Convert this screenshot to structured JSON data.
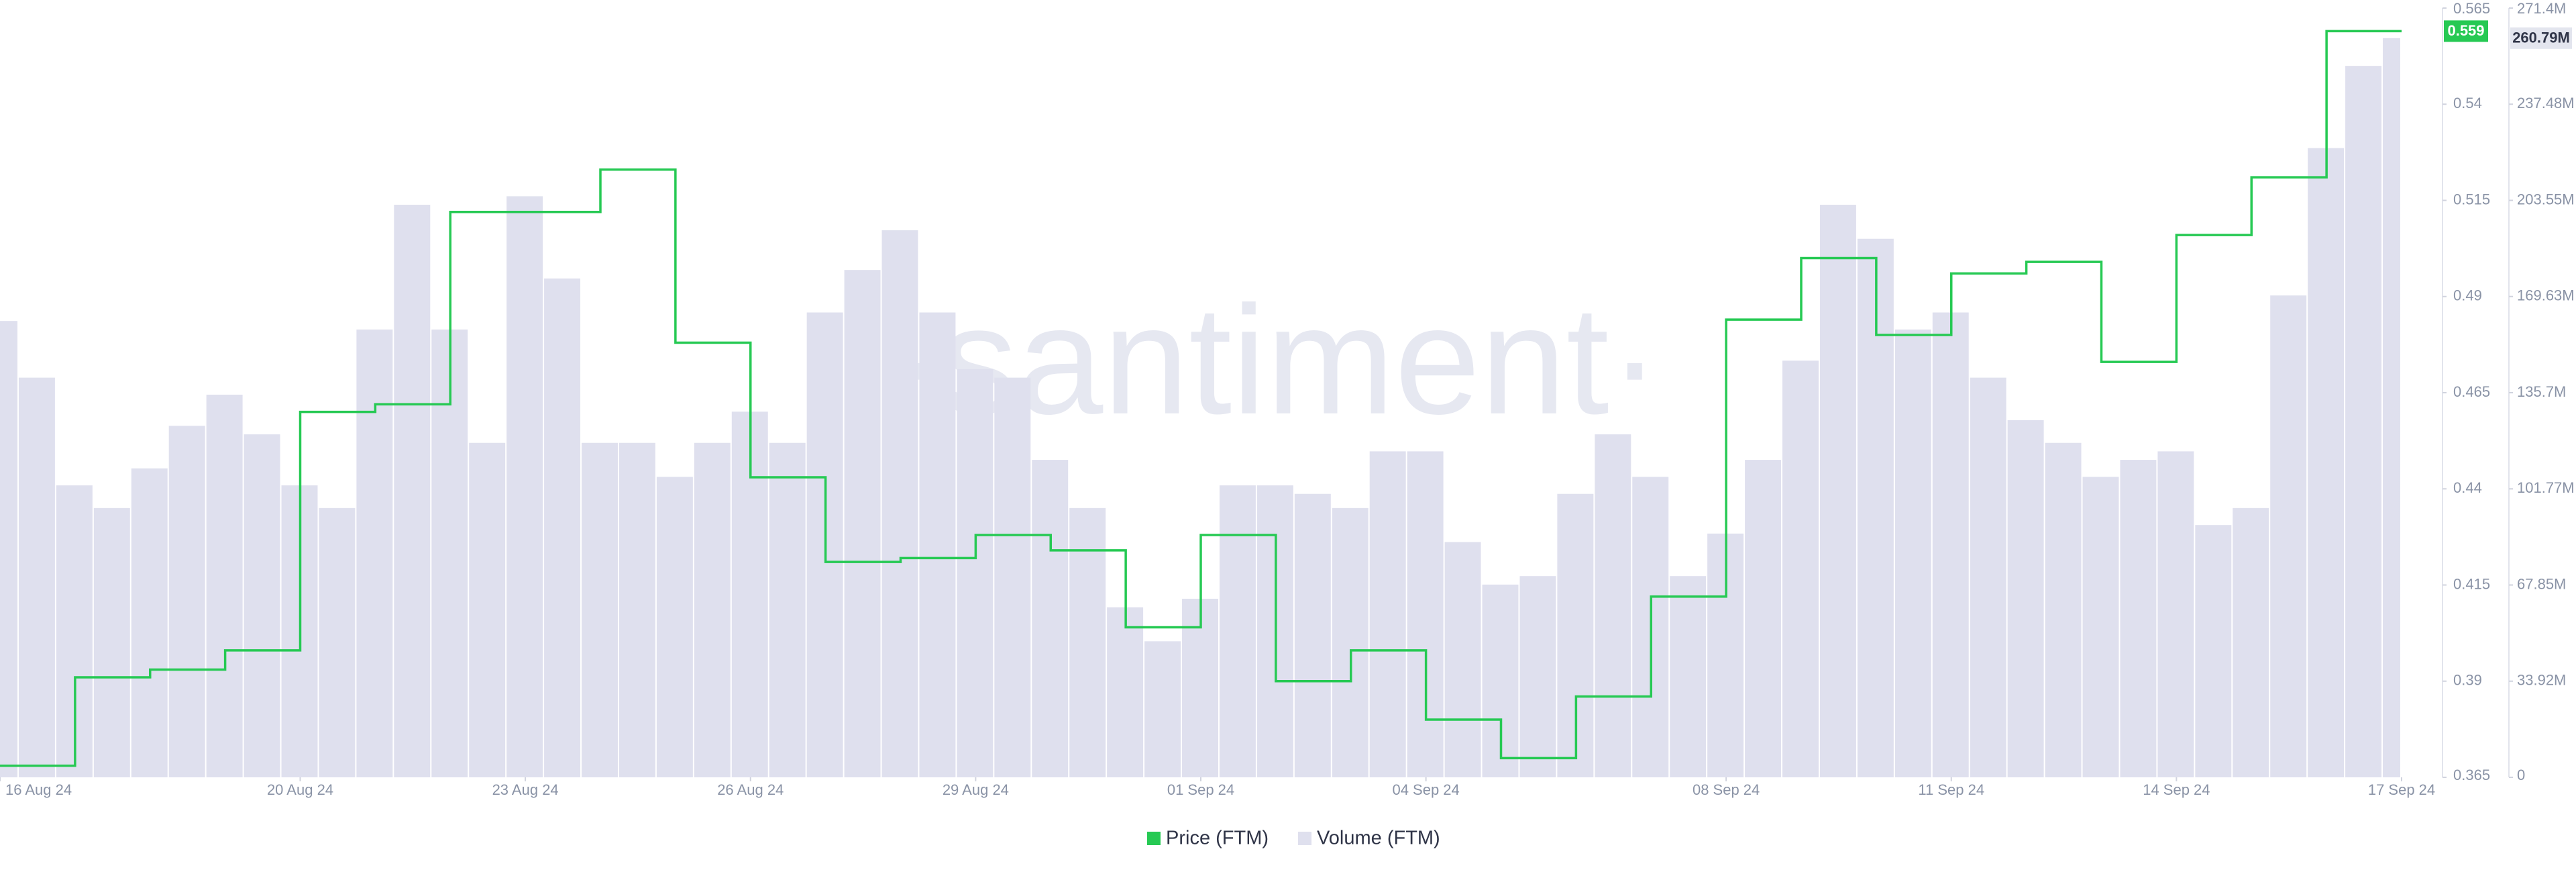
{
  "chart_data": {
    "type": "price-volume",
    "watermark": "·santiment·",
    "xlim": [
      "2024-08-16 00:00",
      "2024-09-17 00:00"
    ],
    "xticks": [
      {
        "value": "2024-08-16",
        "label": "16 Aug 24"
      },
      {
        "value": "2024-08-20",
        "label": "20 Aug 24"
      },
      {
        "value": "2024-08-23",
        "label": "23 Aug 24"
      },
      {
        "value": "2024-08-26",
        "label": "26 Aug 24"
      },
      {
        "value": "2024-08-29",
        "label": "29 Aug 24"
      },
      {
        "value": "2024-09-01",
        "label": "01 Sep 24"
      },
      {
        "value": "2024-09-04",
        "label": "04 Sep 24"
      },
      {
        "value": "2024-09-08",
        "label": "08 Sep 24"
      },
      {
        "value": "2024-09-11",
        "label": "11 Sep 24"
      },
      {
        "value": "2024-09-14",
        "label": "14 Sep 24"
      },
      {
        "value": "2024-09-17",
        "label": "17 Sep 24"
      }
    ],
    "ylim": [
      0.365,
      0.565
    ],
    "yticks": [
      0.365,
      0.39,
      0.415,
      0.44,
      0.465,
      0.49,
      0.515,
      0.54,
      0.565
    ],
    "y2lim": [
      0,
      271400000
    ],
    "y2ticks": [
      0,
      {
        "value": 33920000,
        "label": "33.92M"
      },
      {
        "value": 67850000,
        "label": "67.85M"
      },
      {
        "value": 101770000,
        "label": "101.77M"
      },
      {
        "value": 135700000,
        "label": "135.7M"
      },
      {
        "value": 169630000,
        "label": "169.63M"
      },
      {
        "value": 203550000,
        "label": "203.55M"
      },
      {
        "value": 237480000,
        "label": "237.48M"
      },
      {
        "value": 271400000,
        "label": "271.4M"
      }
    ],
    "series": [
      {
        "name": "Price (FTM)",
        "color": "#26c953",
        "kind": "step",
        "x": [
          "2024-08-16",
          "2024-08-17",
          "2024-08-18",
          "2024-08-19",
          "2024-08-20",
          "2024-08-21",
          "2024-08-22",
          "2024-08-23",
          "2024-08-24",
          "2024-08-25",
          "2024-08-26",
          "2024-08-27",
          "2024-08-28",
          "2024-08-29",
          "2024-08-30",
          "2024-08-31",
          "2024-09-01",
          "2024-09-02",
          "2024-09-03",
          "2024-09-04",
          "2024-09-05",
          "2024-09-06",
          "2024-09-07",
          "2024-09-08",
          "2024-09-09",
          "2024-09-10",
          "2024-09-11",
          "2024-09-12",
          "2024-09-13",
          "2024-09-14",
          "2024-09-15",
          "2024-09-16"
        ],
        "values": [
          0.368,
          0.391,
          0.393,
          0.398,
          0.46,
          0.462,
          0.512,
          0.512,
          0.523,
          0.478,
          0.443,
          0.421,
          0.422,
          0.428,
          0.424,
          0.404,
          0.428,
          0.39,
          0.398,
          0.38,
          0.37,
          0.386,
          0.412,
          0.484,
          0.5,
          0.48,
          0.496,
          0.499,
          0.473,
          0.506,
          0.521,
          0.559
        ]
      },
      {
        "name": "Volume (FTM)",
        "color": "#dfe0ee",
        "kind": "bar",
        "axis": "y2",
        "x": [
          "2024-08-16 00:00",
          "2024-08-16 12:00",
          "2024-08-17 00:00",
          "2024-08-17 12:00",
          "2024-08-18 00:00",
          "2024-08-18 12:00",
          "2024-08-19 00:00",
          "2024-08-19 12:00",
          "2024-08-20 00:00",
          "2024-08-20 12:00",
          "2024-08-21 00:00",
          "2024-08-21 12:00",
          "2024-08-22 00:00",
          "2024-08-22 12:00",
          "2024-08-23 00:00",
          "2024-08-23 12:00",
          "2024-08-24 00:00",
          "2024-08-24 12:00",
          "2024-08-25 00:00",
          "2024-08-25 12:00",
          "2024-08-26 00:00",
          "2024-08-26 12:00",
          "2024-08-27 00:00",
          "2024-08-27 12:00",
          "2024-08-28 00:00",
          "2024-08-28 12:00",
          "2024-08-29 00:00",
          "2024-08-29 12:00",
          "2024-08-30 00:00",
          "2024-08-30 12:00",
          "2024-08-31 00:00",
          "2024-08-31 12:00",
          "2024-09-01 00:00",
          "2024-09-01 12:00",
          "2024-09-02 00:00",
          "2024-09-02 12:00",
          "2024-09-03 00:00",
          "2024-09-03 12:00",
          "2024-09-04 00:00",
          "2024-09-04 12:00",
          "2024-09-05 00:00",
          "2024-09-05 12:00",
          "2024-09-06 00:00",
          "2024-09-06 12:00",
          "2024-09-07 00:00",
          "2024-09-07 12:00",
          "2024-09-08 00:00",
          "2024-09-08 12:00",
          "2024-09-09 00:00",
          "2024-09-09 12:00",
          "2024-09-10 00:00",
          "2024-09-10 12:00",
          "2024-09-11 00:00",
          "2024-09-11 12:00",
          "2024-09-12 00:00",
          "2024-09-12 12:00",
          "2024-09-13 00:00",
          "2024-09-13 12:00",
          "2024-09-14 00:00",
          "2024-09-14 12:00",
          "2024-09-15 00:00",
          "2024-09-15 12:00",
          "2024-09-16 00:00",
          "2024-09-16 12:00",
          "2024-09-17 00:00"
        ],
        "values": [
          161000000,
          141000000,
          103000000,
          95000000,
          109000000,
          124000000,
          135000000,
          121000000,
          103000000,
          95000000,
          158000000,
          202000000,
          158000000,
          118000000,
          205000000,
          176000000,
          118000000,
          118000000,
          106000000,
          118000000,
          129000000,
          118000000,
          164000000,
          179000000,
          193000000,
          164000000,
          144000000,
          141000000,
          112000000,
          95000000,
          60000000,
          48000000,
          63000000,
          103000000,
          103000000,
          100000000,
          95000000,
          115000000,
          115000000,
          83000000,
          68000000,
          71000000,
          100000000,
          121000000,
          106000000,
          71000000,
          86000000,
          112000000,
          147000000,
          202000000,
          190000000,
          158000000,
          164000000,
          141000000,
          126000000,
          118000000,
          106000000,
          112000000,
          115000000,
          89000000,
          95000000,
          170000000,
          222000000,
          251000000,
          260790000
        ],
        "value_labels": [
          null,
          null,
          null,
          null,
          null,
          null,
          null,
          null,
          null,
          null,
          null,
          null,
          null,
          null,
          null,
          null,
          null,
          null,
          null,
          null,
          null,
          null,
          null,
          null,
          null,
          null,
          null,
          null,
          null,
          null,
          null,
          null,
          null,
          null,
          null,
          null,
          null,
          null,
          null,
          null,
          null,
          null,
          null,
          null,
          null,
          null,
          null,
          null,
          null,
          null,
          null,
          null,
          null,
          null,
          null,
          null,
          null,
          null,
          null,
          null,
          null,
          null,
          null,
          null,
          "260.79M"
        ]
      }
    ]
  }
}
